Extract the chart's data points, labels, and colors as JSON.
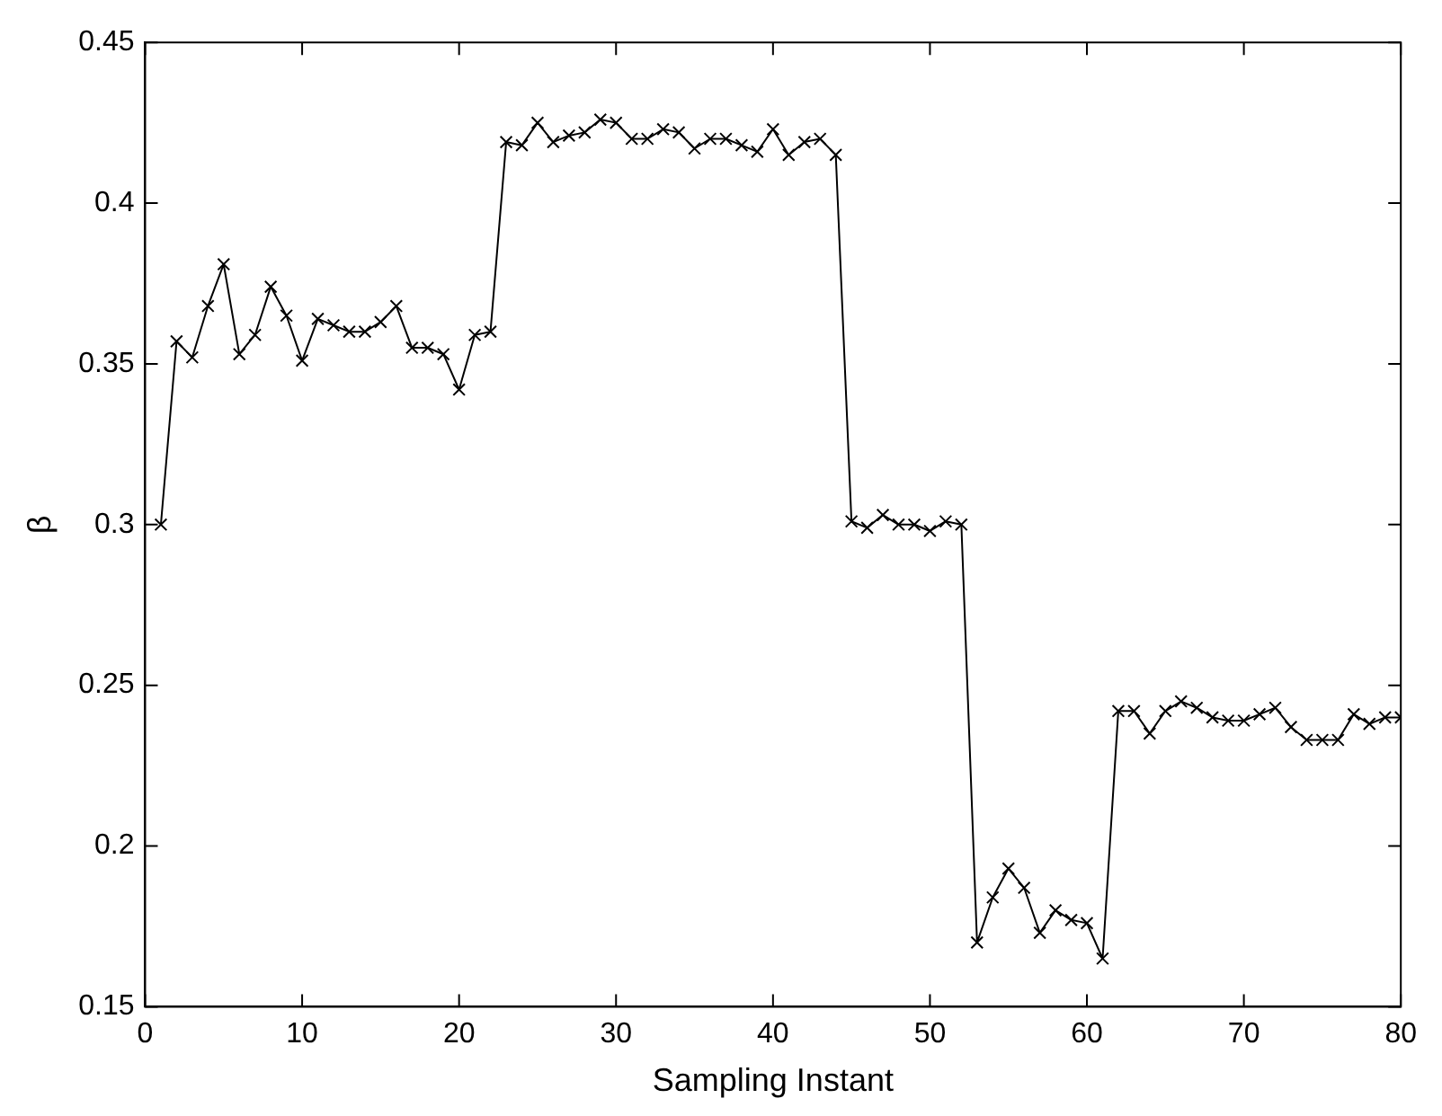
{
  "chart_data": {
    "type": "line",
    "xlabel": "Sampling Instant",
    "ylabel": "β",
    "x": [
      1,
      2,
      3,
      4,
      5,
      6,
      7,
      8,
      9,
      10,
      11,
      12,
      13,
      14,
      15,
      16,
      17,
      18,
      19,
      20,
      21,
      22,
      23,
      24,
      25,
      26,
      27,
      28,
      29,
      30,
      31,
      32,
      33,
      34,
      35,
      36,
      37,
      38,
      39,
      40,
      41,
      42,
      43,
      44,
      45,
      46,
      47,
      48,
      49,
      50,
      51,
      52,
      53,
      54,
      55,
      56,
      57,
      58,
      59,
      60,
      61,
      62,
      63,
      64,
      65,
      66,
      67,
      68,
      69,
      70,
      71,
      72,
      73,
      74,
      75,
      76,
      77,
      78,
      79,
      80
    ],
    "series": [
      {
        "color": "#000000",
        "values": [
          0.3,
          0.357,
          0.352,
          0.368,
          0.381,
          0.353,
          0.359,
          0.374,
          0.365,
          0.351,
          0.364,
          0.362,
          0.36,
          0.36,
          0.363,
          0.368,
          0.355,
          0.355,
          0.353,
          0.342,
          0.359,
          0.36,
          0.419,
          0.418,
          0.425,
          0.419,
          0.421,
          0.422,
          0.426,
          0.425,
          0.42,
          0.42,
          0.423,
          0.422,
          0.417,
          0.42,
          0.42,
          0.418,
          0.416,
          0.423,
          0.415,
          0.419,
          0.42,
          0.415,
          0.301,
          0.299,
          0.303,
          0.3,
          0.3,
          0.298,
          0.301,
          0.3,
          0.17,
          0.184,
          0.193,
          0.187,
          0.173,
          0.18,
          0.177,
          0.176,
          0.165,
          0.242,
          0.242,
          0.235,
          0.242,
          0.245,
          0.243,
          0.24,
          0.239,
          0.239,
          0.241,
          0.243,
          0.237,
          0.233,
          0.233,
          0.233,
          0.241,
          0.238,
          0.24,
          0.24
        ]
      }
    ],
    "xlim": [
      0,
      80
    ],
    "xticks": [
      0,
      10,
      20,
      30,
      40,
      50,
      60,
      70,
      80
    ],
    "ylim": [
      0.15,
      0.45
    ],
    "yticks": [
      0.15,
      0.2,
      0.25,
      0.3,
      0.35,
      0.4,
      0.45
    ],
    "grid": false,
    "legend": false,
    "marker": "cross",
    "line_style": "solid"
  }
}
